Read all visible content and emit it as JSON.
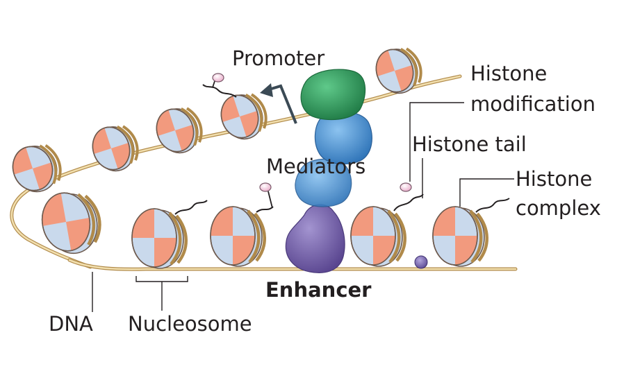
{
  "labels": {
    "promoter": "Promoter",
    "histone_modification_line1": "Histone",
    "histone_modification_line2": "modification",
    "histone_tail": "Histone tail",
    "mediators": "Mediators",
    "histone_complex_line1": "Histone",
    "histone_complex_line2": "complex",
    "enhancer": "Enhancer",
    "dna": "DNA",
    "nucleosome": "Nucleosome"
  },
  "colors": {
    "dna_strand": "#b08a4a",
    "dna_highlight": "#f2dfae",
    "histone_salmon": "#f29a7e",
    "histone_blue": "#c9d9ec",
    "histone_edge": "#6d5a4e",
    "promoter_protein": "#2e9a5a",
    "mediator_protein": "#4f92d3",
    "enhancer_protein": "#7b67ad",
    "modification_mark": "#f4c6dc"
  }
}
